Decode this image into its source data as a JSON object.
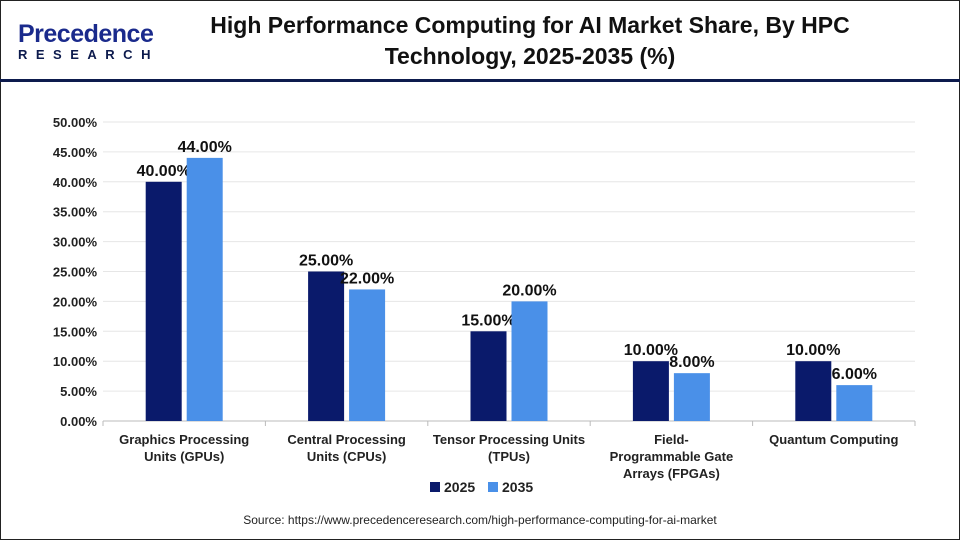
{
  "logo": {
    "line1": "Precedence",
    "line2": "RESEARCH"
  },
  "title": "High Performance Computing for AI Market Share, By HPC Technology, 2025-2035 (%)",
  "source": "Source: https://www.precedenceresearch.com/high-performance-computing-for-ai-market",
  "chart_data": {
    "type": "bar",
    "title": "High Performance Computing for AI Market Share, By HPC Technology, 2025-2035 (%)",
    "categories": [
      [
        "Graphics Processing",
        "Units (GPUs)"
      ],
      [
        "Central Processing",
        "Units (CPUs)"
      ],
      [
        "Tensor Processing Units",
        "(TPUs)"
      ],
      [
        "Field-",
        "Programmable Gate",
        "Arrays (FPGAs)"
      ],
      [
        "Quantum Computing"
      ]
    ],
    "series": [
      {
        "name": "2025",
        "color": "#0a1a6b",
        "values": [
          40,
          25,
          15,
          10,
          10
        ]
      },
      {
        "name": "2035",
        "color": "#4a90e8",
        "values": [
          44,
          22,
          20,
          8,
          6
        ]
      }
    ],
    "ylim": [
      0,
      50
    ],
    "yticks": [
      "0.00%",
      "5.00%",
      "10.00%",
      "15.00%",
      "20.00%",
      "25.00%",
      "30.00%",
      "35.00%",
      "40.00%",
      "45.00%",
      "50.00%"
    ],
    "grid": true,
    "legend": "bottom"
  }
}
